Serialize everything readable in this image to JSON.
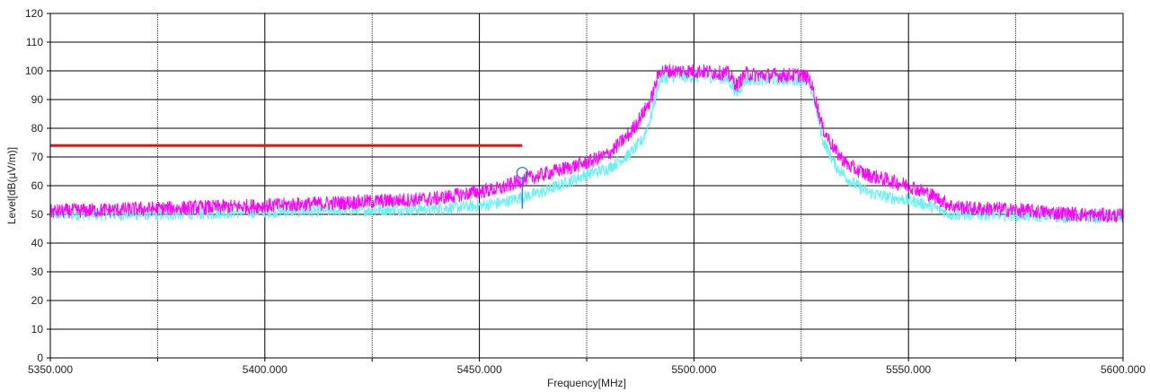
{
  "chart_data": {
    "type": "line",
    "xlabel": "Frequency[MHz]",
    "ylabel": "Level[dB(µV/m)]",
    "xlim": [
      5350,
      5600
    ],
    "ylim": [
      0,
      120
    ],
    "x_ticks": [
      5350,
      5375,
      5400,
      5425,
      5450,
      5475,
      5500,
      5525,
      5550,
      5575,
      5600
    ],
    "x_tick_labels": [
      "5350.000",
      "",
      "5400.000",
      "",
      "5450.000",
      "",
      "5500.000",
      "",
      "5550.000",
      "",
      "5600.000"
    ],
    "y_ticks": [
      0,
      10,
      20,
      30,
      40,
      50,
      60,
      70,
      80,
      90,
      100,
      110,
      120
    ],
    "y_tick_labels": [
      "0",
      "10",
      "20",
      "30",
      "40",
      "50",
      "60",
      "70",
      "80",
      "90",
      "100",
      "110",
      "120"
    ],
    "grid": true,
    "series": [
      {
        "color": "#66f2f2",
        "x": [
          5350,
          5375,
          5400,
          5425,
          5440,
          5450,
          5455,
          5460,
          5465,
          5470,
          5475,
          5480,
          5485,
          5488,
          5490,
          5492,
          5495,
          5500,
          5505,
          5508,
          5510,
          5512,
          5515,
          5520,
          5525,
          5527,
          5528,
          5530,
          5533,
          5536,
          5540,
          5545,
          5550,
          5555,
          5560,
          5565,
          5570,
          5580,
          5590,
          5600
        ],
        "y": [
          50,
          50,
          51,
          51.5,
          52,
          53,
          54,
          56,
          58,
          61,
          64,
          66,
          71,
          76,
          84,
          97,
          98,
          98,
          98,
          97,
          92,
          97,
          97,
          97,
          97,
          95,
          90,
          76,
          67,
          62,
          58,
          56,
          55,
          53,
          50,
          50,
          50,
          49.5,
          49,
          49
        ]
      },
      {
        "color": "#ff00ff",
        "x": [
          5350,
          5375,
          5400,
          5425,
          5440,
          5450,
          5455,
          5460,
          5465,
          5470,
          5475,
          5480,
          5485,
          5488,
          5490,
          5492,
          5495,
          5500,
          5505,
          5508,
          5510,
          5512,
          5515,
          5520,
          5525,
          5527,
          5528,
          5530,
          5533,
          5536,
          5540,
          5545,
          5550,
          5555,
          5560,
          5565,
          5570,
          5580,
          5590,
          5600
        ],
        "y": [
          51,
          52,
          53,
          54.5,
          55.5,
          58,
          59,
          62,
          64,
          66,
          68,
          71,
          78,
          85,
          90,
          100,
          100,
          100,
          99.5,
          99,
          95,
          99,
          98.5,
          98.5,
          98.5,
          97,
          92,
          80,
          72,
          67,
          64,
          62,
          60,
          57,
          53,
          52,
          52,
          51,
          50,
          49.5
        ]
      },
      {
        "color": "#ee1111",
        "x": [
          5350,
          5460
        ],
        "y": [
          74,
          74
        ]
      }
    ],
    "marker": {
      "x": 5460,
      "y": 64.5,
      "color": "#3377ee"
    },
    "colors": {
      "grid": "#000000",
      "axis": "#000000",
      "background": "#ffffff"
    }
  }
}
